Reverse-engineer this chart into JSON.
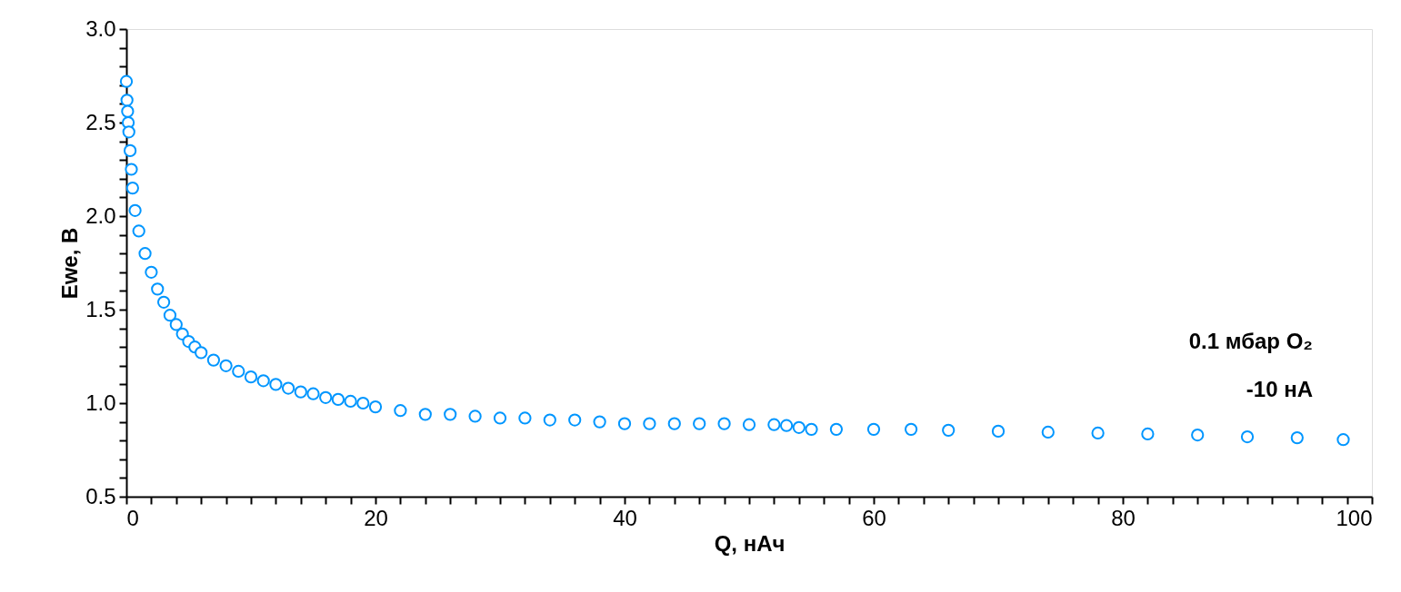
{
  "chart_data": {
    "type": "scatter",
    "xlabel": "Q, нАч",
    "ylabel": "Ewe, В",
    "annotations": [
      "0.1 мбар O₂",
      "-10 нА"
    ],
    "series": [
      {
        "color": "#0096ff",
        "x": [
          0,
          0.05,
          0.1,
          0.15,
          0.2,
          0.3,
          0.4,
          0.5,
          0.7,
          1,
          1.5,
          2,
          2.5,
          3,
          3.5,
          4,
          4.5,
          5,
          5.5,
          6,
          7,
          8,
          9,
          10,
          11,
          12,
          13,
          14,
          15,
          16,
          17,
          18,
          19,
          20,
          22,
          24,
          26,
          28,
          30,
          32,
          34,
          36,
          38,
          40,
          42,
          44,
          46,
          48,
          50,
          52,
          53,
          54,
          55,
          57,
          60,
          63,
          66,
          70,
          74,
          78,
          82,
          86,
          90,
          94,
          97.7
        ],
        "values": [
          2.72,
          2.62,
          2.56,
          2.5,
          2.45,
          2.35,
          2.25,
          2.15,
          2.03,
          1.92,
          1.8,
          1.7,
          1.61,
          1.54,
          1.47,
          1.42,
          1.37,
          1.33,
          1.3,
          1.27,
          1.23,
          1.2,
          1.17,
          1.14,
          1.12,
          1.1,
          1.08,
          1.06,
          1.05,
          1.03,
          1.02,
          1.01,
          1.0,
          0.98,
          0.96,
          0.94,
          0.94,
          0.93,
          0.92,
          0.92,
          0.91,
          0.91,
          0.9,
          0.89,
          0.89,
          0.89,
          0.89,
          0.89,
          0.885,
          0.885,
          0.88,
          0.87,
          0.86,
          0.86,
          0.86,
          0.86,
          0.855,
          0.85,
          0.845,
          0.84,
          0.835,
          0.83,
          0.82,
          0.815,
          0.805
        ]
      }
    ],
    "marker": "circle",
    "legend": false,
    "grid": false,
    "xlim": [
      0,
      100
    ],
    "xticks": [
      0,
      {
        "value": 2,
        "label": null
      },
      {
        "value": 4,
        "label": null
      },
      {
        "value": 6,
        "label": null
      },
      {
        "value": 8,
        "label": null
      },
      {
        "value": 10,
        "label": null
      },
      {
        "value": 12,
        "label": null
      },
      {
        "value": 14,
        "label": null
      },
      {
        "value": 16,
        "label": null
      },
      {
        "value": 18,
        "label": null
      },
      20,
      {
        "value": 22,
        "label": null
      },
      {
        "value": 24,
        "label": null
      },
      {
        "value": 26,
        "label": null
      },
      {
        "value": 28,
        "label": null
      },
      {
        "value": 30,
        "label": null
      },
      {
        "value": 32,
        "label": null
      },
      {
        "value": 34,
        "label": null
      },
      {
        "value": 36,
        "label": null
      },
      {
        "value": 38,
        "label": null
      },
      40,
      {
        "value": 42,
        "label": null
      },
      {
        "value": 44,
        "label": null
      },
      {
        "value": 46,
        "label": null
      },
      {
        "value": 48,
        "label": null
      },
      {
        "value": 50,
        "label": null
      },
      {
        "value": 52,
        "label": null
      },
      {
        "value": 54,
        "label": null
      },
      {
        "value": 56,
        "label": null
      },
      {
        "value": 58,
        "label": null
      },
      60,
      {
        "value": 62,
        "label": null
      },
      {
        "value": 64,
        "label": null
      },
      {
        "value": 66,
        "label": null
      },
      {
        "value": 68,
        "label": null
      },
      {
        "value": 70,
        "label": null
      },
      {
        "value": 72,
        "label": null
      },
      {
        "value": 74,
        "label": null
      },
      {
        "value": 76,
        "label": null
      },
      {
        "value": 78,
        "label": null
      },
      80,
      {
        "value": 82,
        "label": null
      },
      {
        "value": 84,
        "label": null
      },
      {
        "value": 86,
        "label": null
      },
      {
        "value": 88,
        "label": null
      },
      {
        "value": 90,
        "label": null
      },
      {
        "value": 92,
        "label": null
      },
      {
        "value": 94,
        "label": null
      },
      {
        "value": 96,
        "label": null
      },
      {
        "value": 98,
        "label": null
      },
      100
    ],
    "ylim": [
      0.5,
      3.0
    ],
    "yticks": [
      {
        "value": 0.5,
        "label": "0.5"
      },
      {
        "value": 0.6,
        "label": null
      },
      {
        "value": 0.7,
        "label": null
      },
      {
        "value": 0.8,
        "label": null
      },
      {
        "value": 0.9,
        "label": null
      },
      {
        "value": 1.0,
        "label": "1.0"
      },
      {
        "value": 1.1,
        "label": null
      },
      {
        "value": 1.2,
        "label": null
      },
      {
        "value": 1.3,
        "label": null
      },
      {
        "value": 1.4,
        "label": null
      },
      {
        "value": 1.5,
        "label": "1.5"
      },
      {
        "value": 1.6,
        "label": null
      },
      {
        "value": 1.7,
        "label": null
      },
      {
        "value": 1.8,
        "label": null
      },
      {
        "value": 1.9,
        "label": null
      },
      {
        "value": 2.0,
        "label": "2.0"
      },
      {
        "value": 2.1,
        "label": null
      },
      {
        "value": 2.2,
        "label": null
      },
      {
        "value": 2.3,
        "label": null
      },
      {
        "value": 2.4,
        "label": null
      },
      {
        "value": 2.5,
        "label": "2.5"
      },
      {
        "value": 2.6,
        "label": null
      },
      {
        "value": 2.7,
        "label": null
      },
      {
        "value": 2.8,
        "label": null
      },
      {
        "value": 2.9,
        "label": null
      },
      {
        "value": 3.0,
        "label": "3.0"
      }
    ]
  }
}
